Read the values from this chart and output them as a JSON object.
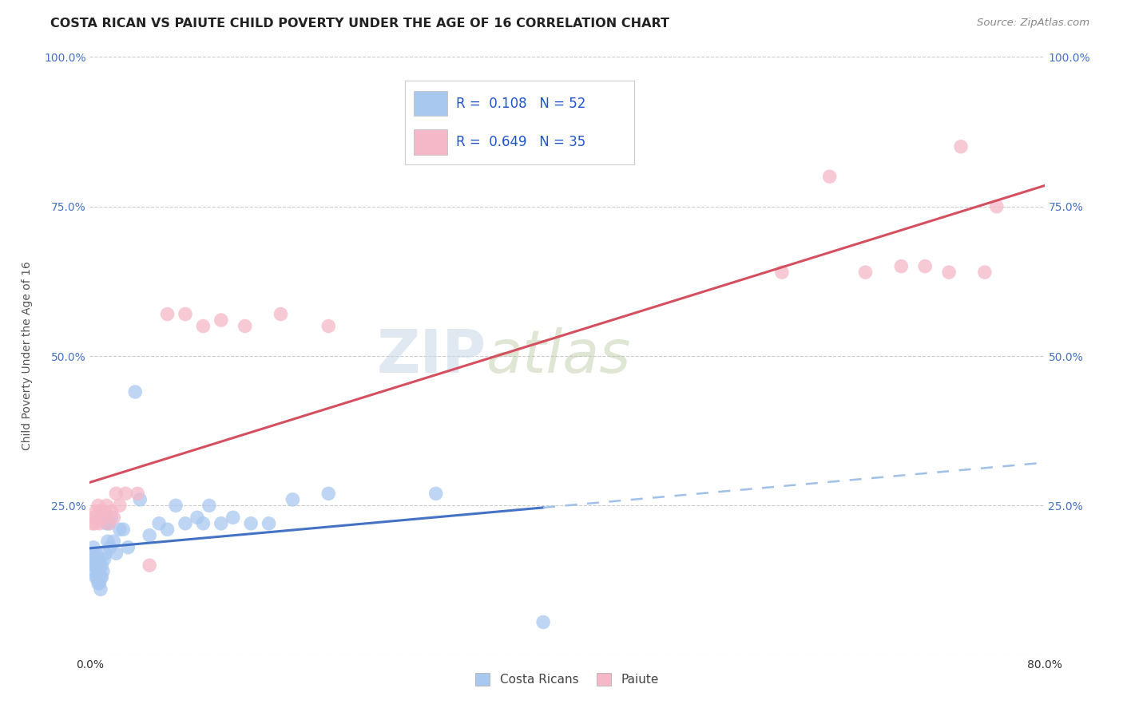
{
  "title": "COSTA RICAN VS PAIUTE CHILD POVERTY UNDER THE AGE OF 16 CORRELATION CHART",
  "source": "Source: ZipAtlas.com",
  "ylabel": "Child Poverty Under the Age of 16",
  "xlim": [
    0.0,
    0.8
  ],
  "ylim": [
    0.0,
    1.0
  ],
  "xtick_vals": [
    0.0,
    0.2,
    0.4,
    0.6,
    0.8
  ],
  "xtick_labels": [
    "0.0%",
    "",
    "",
    "",
    "80.0%"
  ],
  "ytick_vals": [
    0.0,
    0.25,
    0.5,
    0.75,
    1.0
  ],
  "ytick_labels": [
    "",
    "25.0%",
    "50.0%",
    "75.0%",
    "100.0%"
  ],
  "background_color": "#ffffff",
  "grid_color": "#cccccc",
  "costa_rican_color": "#a8c8f0",
  "paiute_color": "#f5b8c8",
  "costa_rican_R": 0.108,
  "costa_rican_N": 52,
  "paiute_R": 0.649,
  "paiute_N": 35,
  "costa_rican_line_color": "#4472c4",
  "costa_rican_dash_color": "#a0c0e8",
  "paiute_line_color": "#d45060",
  "legend_R_color": "#2255cc",
  "watermark": "ZIPatlas",
  "cr_line_solid_end": 0.38,
  "costa_rican_x": [
    0.002,
    0.003,
    0.003,
    0.004,
    0.004,
    0.005,
    0.005,
    0.005,
    0.006,
    0.006,
    0.006,
    0.007,
    0.007,
    0.007,
    0.008,
    0.008,
    0.008,
    0.009,
    0.009,
    0.01,
    0.01,
    0.011,
    0.012,
    0.013,
    0.014,
    0.015,
    0.016,
    0.017,
    0.018,
    0.02,
    0.022,
    0.025,
    0.028,
    0.032,
    0.038,
    0.042,
    0.05,
    0.058,
    0.065,
    0.072,
    0.08,
    0.09,
    0.095,
    0.1,
    0.11,
    0.12,
    0.135,
    0.15,
    0.17,
    0.2,
    0.29,
    0.38
  ],
  "costa_rican_y": [
    0.17,
    0.15,
    0.18,
    0.14,
    0.16,
    0.13,
    0.15,
    0.17,
    0.13,
    0.15,
    0.16,
    0.12,
    0.14,
    0.16,
    0.12,
    0.14,
    0.15,
    0.11,
    0.13,
    0.13,
    0.15,
    0.14,
    0.16,
    0.17,
    0.22,
    0.19,
    0.22,
    0.18,
    0.23,
    0.19,
    0.17,
    0.21,
    0.21,
    0.18,
    0.44,
    0.26,
    0.2,
    0.22,
    0.21,
    0.25,
    0.22,
    0.23,
    0.22,
    0.25,
    0.22,
    0.23,
    0.22,
    0.22,
    0.26,
    0.27,
    0.27,
    0.055
  ],
  "paiute_x": [
    0.002,
    0.003,
    0.004,
    0.005,
    0.006,
    0.007,
    0.008,
    0.009,
    0.01,
    0.012,
    0.014,
    0.016,
    0.018,
    0.02,
    0.022,
    0.025,
    0.03,
    0.04,
    0.05,
    0.065,
    0.08,
    0.095,
    0.11,
    0.13,
    0.16,
    0.2,
    0.58,
    0.62,
    0.65,
    0.68,
    0.7,
    0.72,
    0.73,
    0.75,
    0.76
  ],
  "paiute_y": [
    0.22,
    0.23,
    0.22,
    0.24,
    0.23,
    0.25,
    0.22,
    0.24,
    0.23,
    0.24,
    0.25,
    0.22,
    0.24,
    0.23,
    0.27,
    0.25,
    0.27,
    0.27,
    0.15,
    0.57,
    0.57,
    0.55,
    0.56,
    0.55,
    0.57,
    0.55,
    0.64,
    0.8,
    0.64,
    0.65,
    0.65,
    0.64,
    0.85,
    0.64,
    0.75
  ]
}
